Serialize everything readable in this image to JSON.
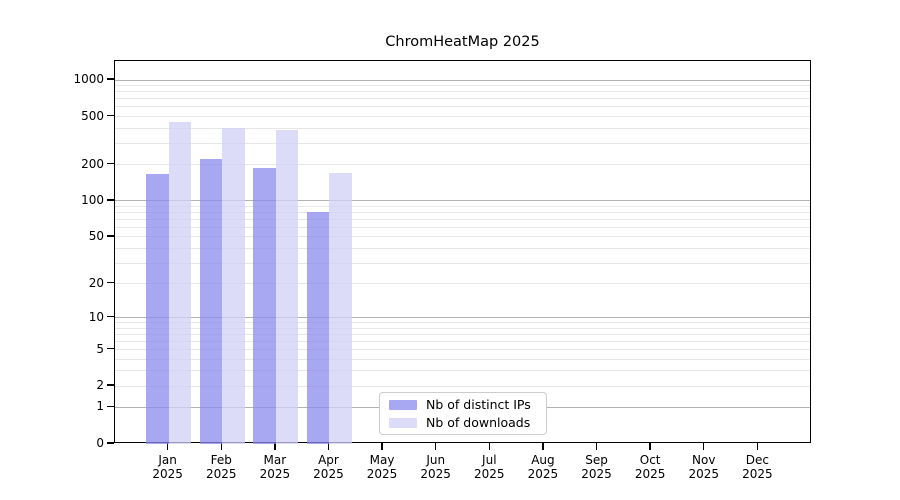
{
  "chart_data": {
    "type": "bar",
    "title": "ChromHeatMap 2025",
    "categories": [
      "Jan",
      "Feb",
      "Mar",
      "Apr",
      "May",
      "Jun",
      "Jul",
      "Aug",
      "Sep",
      "Oct",
      "Nov",
      "Dec"
    ],
    "year_line": "2025",
    "series": [
      {
        "name": "Nb of distinct IPs",
        "color": "#a8a8f2",
        "fill_rgba": "rgba(139,139,238,0.75)",
        "values": [
          168,
          222,
          188,
          81,
          0,
          0,
          0,
          0,
          0,
          0,
          0,
          0
        ]
      },
      {
        "name": "Nb of downloads",
        "color": "#dcdcf9",
        "fill_rgba": "rgba(208,208,247,0.75)",
        "values": [
          450,
          400,
          390,
          172,
          0,
          0,
          0,
          0,
          0,
          0,
          0,
          0
        ]
      }
    ],
    "yscale": "log1p",
    "yticks": [
      0,
      1,
      2,
      5,
      10,
      20,
      50,
      100,
      200,
      500,
      1000
    ],
    "ylim": [
      0,
      1437
    ],
    "major_grid_values": [
      1,
      10,
      100,
      1000
    ],
    "grid": {
      "major_color": "#b2b2b2",
      "minor_color": "#e7e7e7"
    },
    "axis_color": "#000000",
    "legend_position": "lower center"
  }
}
